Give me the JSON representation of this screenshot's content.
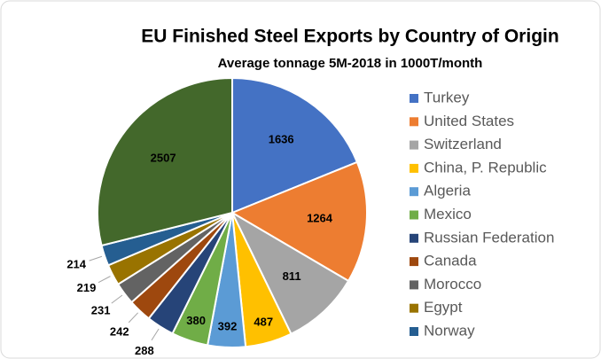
{
  "chart_data": {
    "type": "pie",
    "title": "EU Finished Steel Exports by Country of Origin",
    "subtitle": "Average tonnage 5M-2018 in 1000T/month",
    "categories": [
      "Turkey",
      "United States",
      "Switzerland",
      "China, P. Republic",
      "Algeria",
      "Mexico",
      "Russian Federation",
      "Canada",
      "Morocco",
      "Egypt",
      "Norway",
      null
    ],
    "values": [
      1636,
      1264,
      811,
      487,
      392,
      380,
      288,
      242,
      231,
      219,
      214,
      2507
    ],
    "colors": [
      "#4472c4",
      "#ed7d31",
      "#a5a5a5",
      "#ffc000",
      "#5b9bd5",
      "#70ad47",
      "#264478",
      "#9e480e",
      "#636363",
      "#997300",
      "#255e91",
      "#43682b"
    ],
    "legend": "right"
  }
}
